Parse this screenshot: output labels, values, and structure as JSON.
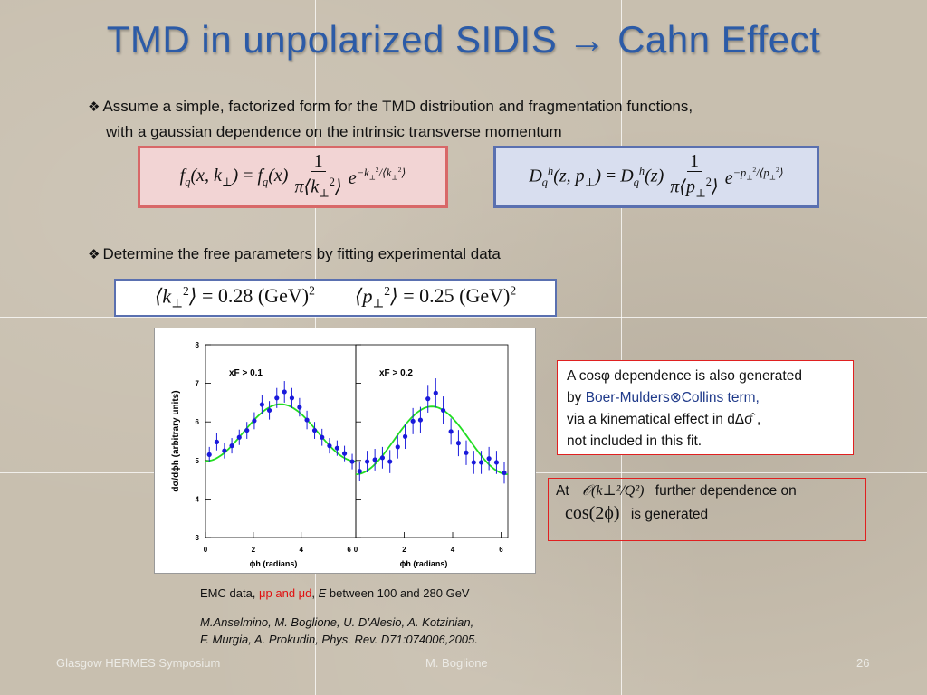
{
  "slide": {
    "title": "TMD in unpolarized SIDIS → Cahn Effect",
    "bullet1_line1": "Assume a simple, factorized form for the TMD distribution and fragmentation functions,",
    "bullet1_line2": "with a gaussian dependence on the intrinsic transverse momentum",
    "bullet2": "Determine the free parameters by fitting experimental data",
    "bullet_mark": "❖",
    "params": {
      "k_value": "0.28",
      "p_value": "0.25",
      "unit": "(GeV)"
    },
    "box1": {
      "line1": "A cosφ dependence is also generated",
      "line2_prefix": "by ",
      "line2_highlight": "Boer-Mulders⊗Collins term,",
      "line3": "via a kinematical effect in dΔσ̂ ,",
      "line4": "not included in this fit."
    },
    "box2": {
      "at": "At",
      "order": "𝒪(k⊥²/Q²)",
      "further": "further dependence on",
      "cos2phi": "cos(2ϕ)",
      "generated": "is generated"
    },
    "ref": {
      "emc_prefix": "EMC data, ",
      "emc_red": "μp and μd",
      "emc_sep": ", ",
      "emc_E": "E",
      "emc_suffix": " between 100 and 280 GeV",
      "authors_line1": "M.Anselmino, M. Boglione, U. D’Alesio, A. Kotzinian,",
      "authors_line2": "F. Murgia, A. Prokudin, Phys. Rev. D71:074006,2005."
    },
    "footer": {
      "left": "Glasgow HERMES Symposium",
      "center": "M. Boglione",
      "page": "26"
    }
  },
  "chart_data": {
    "type": "scatter",
    "ylabel": "dσ/dϕh (arbitrary units)",
    "ylim": [
      3,
      8
    ],
    "yticks": [
      "3",
      "4",
      "5",
      "6",
      "7",
      "8"
    ],
    "xlim": [
      0,
      6.28
    ],
    "xticks": [
      "0",
      "2",
      "4",
      "6"
    ],
    "xlabel": "ϕh (radians)",
    "fit_color": "#22dd22",
    "point_color": "#1a1adb",
    "panels": [
      {
        "label": "xF > 0.1",
        "x": [
          0.16,
          0.47,
          0.79,
          1.1,
          1.41,
          1.73,
          2.04,
          2.36,
          2.67,
          2.98,
          3.3,
          3.61,
          3.93,
          4.24,
          4.56,
          4.87,
          5.18,
          5.5,
          5.81,
          6.13
        ],
        "y": [
          5.15,
          5.48,
          5.25,
          5.38,
          5.6,
          5.78,
          6.03,
          6.45,
          6.3,
          6.62,
          6.78,
          6.62,
          6.38,
          6.05,
          5.78,
          5.6,
          5.38,
          5.32,
          5.18,
          4.97
        ],
        "err": [
          0.2,
          0.22,
          0.2,
          0.2,
          0.2,
          0.22,
          0.22,
          0.24,
          0.24,
          0.26,
          0.28,
          0.26,
          0.24,
          0.24,
          0.22,
          0.22,
          0.2,
          0.2,
          0.2,
          0.2
        ],
        "fit": {
          "mean": 5.72,
          "amp": 0.74
        }
      },
      {
        "label": "xF > 0.2",
        "x": [
          0.16,
          0.47,
          0.79,
          1.1,
          1.41,
          1.73,
          2.04,
          2.36,
          2.67,
          2.98,
          3.3,
          3.61,
          3.93,
          4.24,
          4.56,
          4.87,
          5.18,
          5.5,
          5.81,
          6.13
        ],
        "y": [
          4.72,
          4.97,
          5.02,
          5.07,
          4.97,
          5.35,
          5.62,
          6.02,
          6.05,
          6.6,
          6.75,
          6.3,
          5.75,
          5.45,
          5.2,
          4.95,
          4.95,
          5.05,
          4.95,
          4.68
        ],
        "err": [
          0.26,
          0.28,
          0.28,
          0.28,
          0.3,
          0.3,
          0.32,
          0.34,
          0.34,
          0.36,
          0.38,
          0.36,
          0.34,
          0.34,
          0.32,
          0.3,
          0.3,
          0.3,
          0.3,
          0.28
        ],
        "fit": {
          "mean": 5.52,
          "amp": 0.88
        }
      }
    ]
  }
}
